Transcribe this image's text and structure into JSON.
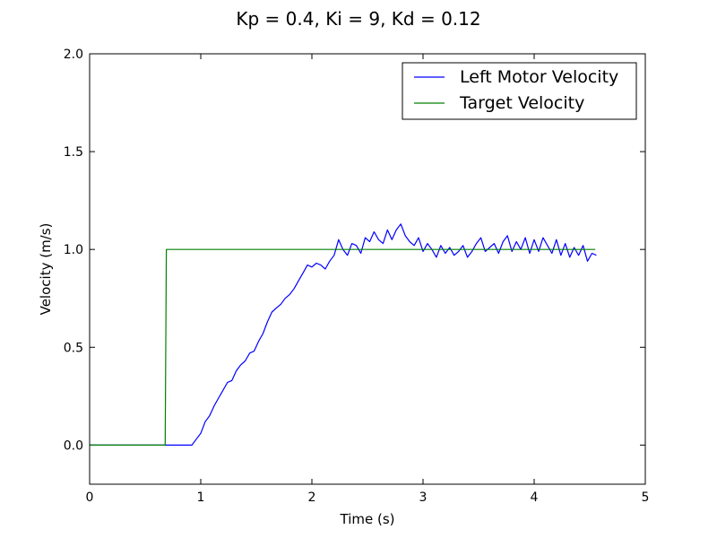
{
  "chart_data": {
    "type": "line",
    "title": "Kp = 0.4, Ki = 9, Kd = 0.12",
    "xlabel": "Time (s)",
    "ylabel": "Velocity (m/s)",
    "xlim": [
      0,
      5
    ],
    "ylim": [
      -0.2,
      2.0
    ],
    "xticks": [
      0,
      1,
      2,
      3,
      4,
      5
    ],
    "xtick_labels": [
      "0",
      "1",
      "2",
      "3",
      "4",
      "5"
    ],
    "yticks": [
      0.0,
      0.5,
      1.0,
      1.5,
      2.0
    ],
    "ytick_labels": [
      "0.0",
      "0.5",
      "1.0",
      "1.5",
      "2.0"
    ],
    "grid": false,
    "legend_position": "top-right",
    "series": [
      {
        "name": "Left Motor Velocity",
        "color": "#0000ff",
        "x": [
          0,
          0.92,
          0.96,
          1.0,
          1.04,
          1.08,
          1.12,
          1.16,
          1.2,
          1.24,
          1.28,
          1.32,
          1.36,
          1.4,
          1.44,
          1.48,
          1.52,
          1.56,
          1.6,
          1.64,
          1.68,
          1.72,
          1.76,
          1.8,
          1.84,
          1.88,
          1.92,
          1.96,
          2.0,
          2.04,
          2.08,
          2.12,
          2.16,
          2.2,
          2.24,
          2.28,
          2.32,
          2.36,
          2.4,
          2.44,
          2.48,
          2.52,
          2.56,
          2.6,
          2.64,
          2.68,
          2.72,
          2.76,
          2.8,
          2.84,
          2.88,
          2.92,
          2.96,
          3.0,
          3.04,
          3.08,
          3.12,
          3.16,
          3.2,
          3.24,
          3.28,
          3.32,
          3.36,
          3.4,
          3.44,
          3.48,
          3.52,
          3.56,
          3.6,
          3.64,
          3.68,
          3.72,
          3.76,
          3.8,
          3.84,
          3.88,
          3.92,
          3.96,
          4.0,
          4.04,
          4.08,
          4.12,
          4.16,
          4.2,
          4.24,
          4.28,
          4.32,
          4.36,
          4.4,
          4.44,
          4.48,
          4.52,
          4.56
        ],
        "y": [
          0.0,
          0.0,
          0.03,
          0.06,
          0.12,
          0.15,
          0.2,
          0.24,
          0.28,
          0.32,
          0.33,
          0.38,
          0.41,
          0.43,
          0.47,
          0.48,
          0.53,
          0.57,
          0.63,
          0.68,
          0.7,
          0.72,
          0.75,
          0.77,
          0.8,
          0.84,
          0.88,
          0.92,
          0.91,
          0.93,
          0.92,
          0.9,
          0.94,
          0.97,
          1.05,
          1.0,
          0.97,
          1.03,
          1.02,
          0.98,
          1.06,
          1.04,
          1.09,
          1.05,
          1.03,
          1.1,
          1.05,
          1.1,
          1.13,
          1.07,
          1.04,
          1.02,
          1.06,
          0.99,
          1.03,
          1.0,
          0.96,
          1.02,
          0.98,
          1.01,
          0.97,
          0.99,
          1.02,
          0.96,
          0.99,
          1.03,
          1.06,
          0.99,
          1.01,
          1.03,
          0.98,
          1.04,
          1.07,
          0.99,
          1.04,
          1.0,
          1.06,
          0.98,
          1.05,
          0.99,
          1.06,
          1.02,
          0.98,
          1.05,
          0.97,
          1.03,
          0.96,
          1.01,
          0.97,
          1.02,
          0.94,
          0.98,
          0.97
        ]
      },
      {
        "name": "Target Velocity",
        "color": "#008000",
        "x": [
          0,
          0.68,
          0.69,
          4.55
        ],
        "y": [
          0.0,
          0.0,
          1.0,
          1.0
        ]
      }
    ]
  }
}
